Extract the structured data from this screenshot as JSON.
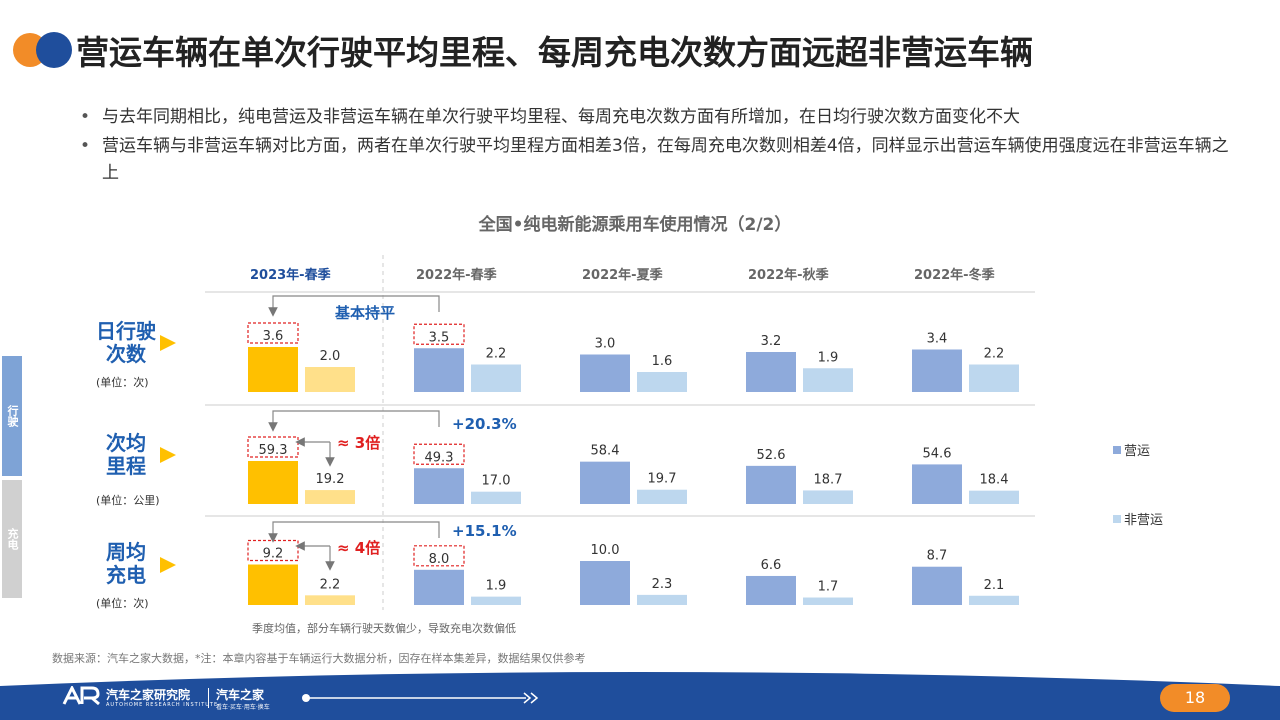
{
  "header": {
    "title": "营运车辆在单次行驶平均里程、每周充电次数方面远超非营运车辆"
  },
  "bullets": [
    "与去年同期相比，纯电营运及非营运车辆在单次行驶平均里程、每周充电次数方面有所增加，在日均行驶次数方面变化不大",
    "营运车辆与非营运车辆对比方面，两者在单次行驶平均里程方面相差3倍，在每周充电次数则相差4倍，同样显示出营运车辆使用强度远在非营运车辆之上"
  ],
  "side_tabs": {
    "drive": "行驶",
    "charge": "充电"
  },
  "metrics": [
    {
      "label": "日行驶次数",
      "line1": "日行驶",
      "line2": "次数",
      "unit": "(单位：次)"
    },
    {
      "label": "次均里程",
      "line1": "次均",
      "line2": "里程",
      "unit": "(单位：公里)"
    },
    {
      "label": "周均充电",
      "line1": "周均",
      "line2": "充电",
      "unit": "(单位：次)"
    }
  ],
  "annotations": {
    "flat": "基本持平",
    "mileage_growth": "+20.3%",
    "charge_growth": "+15.1%",
    "mileage_ratio": "≈  3倍",
    "charge_ratio": "≈  4倍"
  },
  "footnote": "季度均值，部分车辆行驶天数偏少，导致充电次数偏低",
  "source": "数据来源：汽车之家大数据，*注：本章内容基于车辆运行大数据分析，因存在样本集差异，数据结果仅供参考",
  "footer": {
    "org": "汽车之家研究院",
    "org_sub": "AUTOHOME RESEARCH INSTITUTE",
    "brand": "汽车之家",
    "brand_sub": "看车·买车·用车·换车",
    "page": "18"
  },
  "colors": {
    "highlight_operating": "#ffc000",
    "highlight_non_operating": "#ffe08a",
    "operating": "#8eaadb",
    "non_operating": "#bdd7ee",
    "title_blue": "#1f5fb0",
    "header_blue": "#1f4e9c",
    "accent_red": "#e02020",
    "accent_orange": "#f28c28"
  },
  "chart_data": {
    "type": "bar",
    "title": "全国•纯电新能源乘用车使用情况（2/2）",
    "categories": [
      "2023年-春季",
      "2022年-春季",
      "2022年-夏季",
      "2022年-秋季",
      "2022年-冬季"
    ],
    "legend": [
      "营运",
      "非营运"
    ],
    "legend_position": "right",
    "panels": [
      {
        "metric": "日行驶次数",
        "unit": "次",
        "series": [
          {
            "name": "营运",
            "values": [
              3.6,
              3.5,
              3.0,
              3.2,
              3.4
            ]
          },
          {
            "name": "非营运",
            "values": [
              2.0,
              2.2,
              1.6,
              1.9,
              2.2
            ]
          }
        ]
      },
      {
        "metric": "次均里程",
        "unit": "公里",
        "series": [
          {
            "name": "营运",
            "values": [
              59.3,
              49.3,
              58.4,
              52.6,
              54.6
            ]
          },
          {
            "name": "非营运",
            "values": [
              19.2,
              17.0,
              19.7,
              18.7,
              18.4
            ]
          }
        ]
      },
      {
        "metric": "周均充电",
        "unit": "次",
        "series": [
          {
            "name": "营运",
            "values": [
              9.2,
              8.0,
              10.0,
              6.6,
              8.7
            ]
          },
          {
            "name": "非营运",
            "values": [
              2.2,
              1.9,
              2.3,
              1.7,
              2.1
            ]
          }
        ]
      }
    ]
  }
}
